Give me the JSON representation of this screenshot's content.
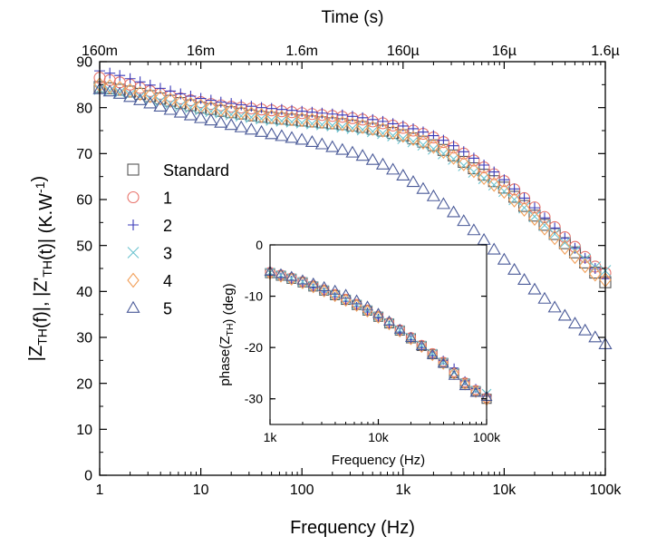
{
  "chart_data": [
    {
      "type": "scatter",
      "id": "main",
      "xlabel": "Frequency (Hz)",
      "ylabel": "|Z_TH(f)|, |Z'_TH(t)| (K.W^-1)",
      "top_axis_label": "Time (s)",
      "xscale": "log",
      "xlim": [
        1,
        100000
      ],
      "ylim": [
        0,
        90
      ],
      "x_ticks": [
        1,
        10,
        100,
        1000,
        10000,
        100000
      ],
      "x_tick_labels": [
        "1",
        "10",
        "100",
        "1k",
        "10k",
        "100k"
      ],
      "y_ticks": [
        0,
        10,
        20,
        30,
        40,
        50,
        60,
        70,
        80,
        90
      ],
      "y_tick_labels": [
        "0",
        "10",
        "20",
        "30",
        "40",
        "50",
        "60",
        "70",
        "80",
        "90"
      ],
      "top_x_ticks": [
        1,
        10,
        100,
        1000,
        10000,
        100000
      ],
      "top_tick_labels": [
        "160m",
        "16m",
        "1.6m",
        "160µ",
        "16µ",
        "1.6µ"
      ],
      "legend_position": "left",
      "grid": false,
      "x": [
        1,
        1.26,
        1.58,
        2,
        2.51,
        3.16,
        3.98,
        5.01,
        6.31,
        7.94,
        10,
        12.6,
        15.8,
        20,
        25.1,
        31.6,
        39.8,
        50.1,
        63.1,
        79.4,
        100,
        126,
        158,
        200,
        251,
        316,
        398,
        501,
        631,
        794,
        1000,
        1260,
        1580,
        2000,
        2510,
        3160,
        3980,
        5010,
        6310,
        7940,
        10000,
        12600,
        15800,
        20000,
        25100,
        31600,
        39800,
        50100,
        63100,
        79400,
        100000
      ],
      "series": [
        {
          "name": "Standard",
          "marker": "square",
          "color": "#555555",
          "values": [
            84.5,
            84.2,
            83.9,
            83.5,
            83.0,
            82.5,
            82.0,
            81.5,
            81.0,
            80.5,
            80.0,
            79.7,
            79.3,
            79.0,
            78.7,
            78.3,
            78.0,
            77.8,
            77.6,
            77.4,
            77.2,
            77.0,
            76.8,
            76.6,
            76.4,
            76.1,
            75.8,
            75.4,
            75.0,
            74.5,
            74.0,
            73.3,
            72.6,
            71.8,
            70.8,
            69.6,
            68.2,
            66.8,
            65.4,
            64.0,
            62.6,
            60.6,
            58.6,
            56.5,
            54.5,
            52.5,
            50.5,
            48.5,
            46.3,
            44.1,
            42.0
          ]
        },
        {
          "name": "1",
          "marker": "circle",
          "color": "#e8736b",
          "values": [
            86.5,
            86.0,
            85.5,
            85.0,
            84.3,
            83.6,
            83.0,
            82.5,
            82.0,
            81.6,
            81.2,
            80.8,
            80.5,
            80.2,
            80.0,
            79.8,
            79.6,
            79.4,
            79.2,
            79.0,
            78.8,
            78.6,
            78.4,
            78.2,
            78.0,
            77.7,
            77.4,
            77.0,
            76.6,
            76.1,
            75.6,
            75.0,
            74.3,
            73.5,
            72.5,
            71.3,
            70.0,
            68.5,
            67.0,
            65.5,
            64.0,
            62.2,
            60.3,
            58.3,
            56.2,
            54.0,
            51.8,
            49.7,
            47.5,
            45.4,
            44.0
          ]
        },
        {
          "name": "2",
          "marker": "plus",
          "color": "#3a3ab8",
          "values": [
            88.0,
            87.5,
            87.0,
            86.3,
            85.6,
            84.9,
            84.2,
            83.6,
            83.0,
            82.5,
            82.0,
            81.6,
            81.2,
            80.9,
            80.6,
            80.3,
            80.0,
            79.8,
            79.6,
            79.4,
            79.2,
            79.0,
            78.8,
            78.6,
            78.4,
            78.1,
            77.8,
            77.4,
            77.0,
            76.5,
            76.0,
            75.4,
            74.7,
            73.9,
            72.9,
            71.7,
            70.4,
            69.0,
            67.5,
            66.0,
            64.3,
            62.3,
            60.3,
            58.2,
            56.0,
            53.8,
            51.6,
            49.4,
            47.2,
            45.0,
            42.8
          ]
        },
        {
          "name": "3",
          "marker": "cross",
          "color": "#6cc3cf",
          "values": [
            84.0,
            83.7,
            83.3,
            82.9,
            82.4,
            81.9,
            81.4,
            80.9,
            80.4,
            80.0,
            79.6,
            79.2,
            78.9,
            78.5,
            78.2,
            77.9,
            77.6,
            77.3,
            77.1,
            76.9,
            76.7,
            76.5,
            76.3,
            76.1,
            75.8,
            75.5,
            75.2,
            74.8,
            74.4,
            73.9,
            73.3,
            72.6,
            71.9,
            71.0,
            70.0,
            68.8,
            67.4,
            66.0,
            64.6,
            63.2,
            61.8,
            60.0,
            58.2,
            56.3,
            54.4,
            52.5,
            50.6,
            48.8,
            47.0,
            45.3,
            44.5
          ]
        },
        {
          "name": "4",
          "marker": "diamond",
          "color": "#f2a05a",
          "values": [
            85.0,
            84.6,
            84.2,
            83.7,
            83.1,
            82.6,
            82.1,
            81.6,
            81.1,
            80.7,
            80.3,
            79.9,
            79.6,
            79.2,
            78.9,
            78.6,
            78.3,
            78.0,
            77.8,
            77.6,
            77.4,
            77.2,
            77.0,
            76.8,
            76.5,
            76.2,
            75.9,
            75.5,
            75.1,
            74.6,
            74.0,
            73.3,
            72.5,
            71.6,
            70.5,
            69.2,
            67.8,
            66.3,
            64.8,
            63.3,
            61.8,
            59.9,
            57.9,
            55.9,
            53.8,
            51.7,
            49.6,
            47.6,
            45.6,
            43.8,
            42.5
          ]
        },
        {
          "name": "5",
          "marker": "triangle",
          "color": "#4a5a98",
          "values": [
            84.0,
            83.5,
            83.0,
            82.3,
            81.6,
            80.9,
            80.2,
            79.5,
            78.9,
            78.3,
            77.7,
            77.2,
            76.7,
            76.2,
            75.7,
            75.2,
            74.7,
            74.2,
            73.8,
            73.4,
            73.0,
            72.5,
            72.0,
            71.4,
            70.8,
            70.2,
            69.5,
            68.6,
            67.6,
            66.5,
            65.2,
            63.8,
            62.3,
            60.7,
            59.0,
            57.2,
            55.3,
            53.3,
            51.2,
            49.1,
            46.9,
            44.7,
            42.5,
            40.4,
            38.4,
            36.5,
            34.7,
            33.0,
            31.5,
            30.0,
            28.5
          ]
        }
      ]
    },
    {
      "type": "scatter",
      "id": "inset",
      "xlabel": "Frequency (Hz)",
      "ylabel": "phase(Z_TH) (deg)",
      "xscale": "log",
      "xlim": [
        1000,
        100000
      ],
      "ylim": [
        -35,
        0
      ],
      "x_ticks": [
        1000,
        10000,
        100000
      ],
      "x_tick_labels": [
        "1k",
        "10k",
        "100k"
      ],
      "y_ticks": [
        0,
        -10,
        -20,
        -30
      ],
      "y_tick_labels": [
        "0",
        "-10",
        "-20",
        "-30"
      ],
      "x": [
        1000,
        1260,
        1580,
        2000,
        2510,
        3160,
        3980,
        5010,
        6310,
        7940,
        10000,
        12600,
        15800,
        20000,
        25100,
        31600,
        39800,
        50100,
        63100,
        79400,
        100000
      ],
      "series": [
        {
          "name": "Standard",
          "marker": "square",
          "color": "#555555",
          "values": [
            -5.5,
            -6.0,
            -6.6,
            -7.3,
            -8.1,
            -8.9,
            -9.8,
            -10.7,
            -11.7,
            -12.8,
            -14.0,
            -15.3,
            -16.7,
            -18.2,
            -19.7,
            -21.3,
            -23.0,
            -25.0,
            -27.0,
            -28.5,
            -30.0
          ]
        },
        {
          "name": "1",
          "marker": "circle",
          "color": "#e8736b",
          "values": [
            -5.3,
            -5.8,
            -6.4,
            -7.1,
            -7.9,
            -8.7,
            -9.6,
            -10.5,
            -11.5,
            -12.6,
            -13.8,
            -15.1,
            -16.5,
            -18.0,
            -19.5,
            -21.1,
            -22.8,
            -24.8,
            -26.8,
            -28.3,
            -29.8
          ]
        },
        {
          "name": "2",
          "marker": "plus",
          "color": "#3a3ab8",
          "values": [
            -5.8,
            -6.3,
            -6.9,
            -7.6,
            -8.4,
            -9.2,
            -10.1,
            -11.0,
            -12.0,
            -13.1,
            -14.3,
            -15.6,
            -17.0,
            -18.5,
            -20.0,
            -21.6,
            -22.5,
            -24.0,
            -26.5,
            -28.0,
            -29.5
          ]
        },
        {
          "name": "3",
          "marker": "cross",
          "color": "#6cc3cf",
          "values": [
            -5.4,
            -5.9,
            -6.5,
            -7.2,
            -8.0,
            -8.8,
            -9.7,
            -10.6,
            -11.6,
            -12.7,
            -13.9,
            -15.2,
            -16.6,
            -18.1,
            -19.6,
            -21.2,
            -22.9,
            -24.9,
            -26.9,
            -28.4,
            -29.0
          ]
        },
        {
          "name": "4",
          "marker": "diamond",
          "color": "#f2a05a",
          "values": [
            -5.6,
            -6.1,
            -6.7,
            -7.4,
            -8.2,
            -9.0,
            -9.9,
            -10.8,
            -11.8,
            -12.9,
            -14.1,
            -15.4,
            -16.8,
            -18.3,
            -19.8,
            -21.4,
            -23.1,
            -25.1,
            -27.1,
            -28.6,
            -30.1
          ]
        },
        {
          "name": "5",
          "marker": "triangle",
          "color": "#4a5a98",
          "values": [
            -5.2,
            -5.7,
            -6.2,
            -6.9,
            -7.5,
            -8.2,
            -8.9,
            -9.7,
            -10.8,
            -12.0,
            -13.4,
            -14.9,
            -16.5,
            -18.1,
            -19.7,
            -21.4,
            -23.1,
            -25.5,
            -27.5,
            -28.8,
            -29.6
          ]
        }
      ]
    }
  ]
}
